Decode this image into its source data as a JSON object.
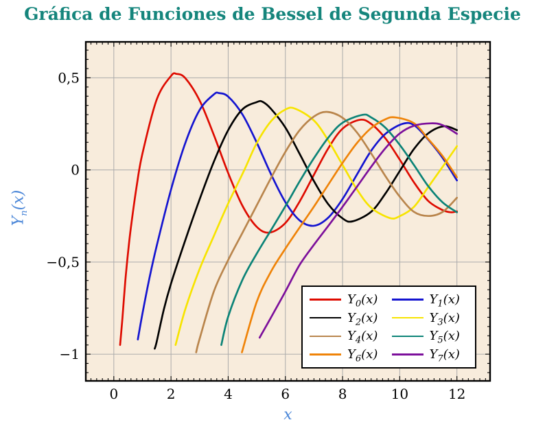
{
  "chart": {
    "title": "Gráfica de Funciones de Bessel de Segunda Especie",
    "title_color": "#15857C",
    "axis_label_color": "#4A86D8",
    "plot_bg": "#F8ECDC",
    "grid_color": "#ABABAB",
    "frame_color": "#000000",
    "tick_color": "#000000"
  },
  "axes": {
    "x": {
      "label": "x"
    },
    "y": {
      "label": {
        "base": "Y",
        "sub": "n",
        "args": "(x)"
      }
    }
  },
  "legend": {
    "base": "Y",
    "args": "(x)",
    "position": "bottom-right"
  },
  "chart_data": {
    "type": "line",
    "title": "Gráfica de Funciones de Bessel de Segunda Especie",
    "xlabel": "x",
    "ylabel": "Y_n(x)",
    "xlim": [
      -0.98,
      13.16
    ],
    "ylim": [
      -1.145,
      0.695
    ],
    "grid": true,
    "legend_position": "bottom-right",
    "x_ticks": {
      "values": [
        0,
        2,
        4,
        6,
        8,
        10,
        12
      ],
      "labels": [
        "0",
        "2",
        "4",
        "6",
        "8",
        "10",
        "12"
      ],
      "minor_step": 0.2
    },
    "y_ticks": {
      "values": [
        -1,
        -0.5,
        0,
        0.5
      ],
      "labels": [
        "−1",
        "−0,5",
        "0",
        "0,5"
      ],
      "minor_step": 0.05
    },
    "series": [
      {
        "name": "Y0(x)",
        "sub": "0",
        "color": "#DE0B00",
        "points": [
          [
            0.22,
            -0.95
          ],
          [
            0.3,
            -0.807
          ],
          [
            0.4,
            -0.606
          ],
          [
            0.5,
            -0.445
          ],
          [
            0.6,
            -0.309
          ],
          [
            0.8,
            -0.087
          ],
          [
            1,
            0.088
          ],
          [
            1.5,
            0.382
          ],
          [
            2,
            0.51
          ],
          [
            2.2,
            0.521
          ],
          [
            2.5,
            0.498
          ],
          [
            3,
            0.377
          ],
          [
            3.5,
            0.189
          ],
          [
            4,
            -0.017
          ],
          [
            4.5,
            -0.195
          ],
          [
            5,
            -0.309
          ],
          [
            5.45,
            -0.34
          ],
          [
            6,
            -0.288
          ],
          [
            6.5,
            -0.171
          ],
          [
            7,
            -0.026
          ],
          [
            7.5,
            0.117
          ],
          [
            8,
            0.224
          ],
          [
            8.6,
            0.272
          ],
          [
            9,
            0.25
          ],
          [
            9.5,
            0.171
          ],
          [
            10,
            0.056
          ],
          [
            10.5,
            -0.068
          ],
          [
            11,
            -0.169
          ],
          [
            11.5,
            -0.218
          ],
          [
            11.8,
            -0.23
          ],
          [
            12,
            -0.225
          ]
        ]
      },
      {
        "name": "Y1(x)",
        "sub": "1",
        "color": "#1414D0",
        "points": [
          [
            0.84,
            -0.92
          ],
          [
            1,
            -0.781
          ],
          [
            1.25,
            -0.584
          ],
          [
            1.5,
            -0.412
          ],
          [
            2,
            -0.107
          ],
          [
            2.5,
            0.146
          ],
          [
            3,
            0.325
          ],
          [
            3.5,
            0.41
          ],
          [
            3.68,
            0.417
          ],
          [
            4,
            0.398
          ],
          [
            4.5,
            0.301
          ],
          [
            5,
            0.148
          ],
          [
            5.5,
            -0.024
          ],
          [
            6,
            -0.175
          ],
          [
            6.5,
            -0.274
          ],
          [
            7,
            -0.303
          ],
          [
            7.5,
            -0.259
          ],
          [
            8,
            -0.158
          ],
          [
            8.5,
            -0.026
          ],
          [
            9,
            0.104
          ],
          [
            9.5,
            0.196
          ],
          [
            10.1,
            0.25
          ],
          [
            10.5,
            0.243
          ],
          [
            11,
            0.164
          ],
          [
            11.5,
            0.065
          ],
          [
            12,
            -0.057
          ]
        ]
      },
      {
        "name": "Y2(x)",
        "sub": "2",
        "color": "#000000",
        "points": [
          [
            1.43,
            -0.97
          ],
          [
            1.5,
            -0.932
          ],
          [
            1.75,
            -0.757
          ],
          [
            2,
            -0.617
          ],
          [
            2.5,
            -0.381
          ],
          [
            3,
            -0.16
          ],
          [
            3.5,
            0.045
          ],
          [
            4,
            0.216
          ],
          [
            4.5,
            0.329
          ],
          [
            5,
            0.368
          ],
          [
            5.2,
            0.37
          ],
          [
            5.5,
            0.331
          ],
          [
            6,
            0.23
          ],
          [
            6.5,
            0.087
          ],
          [
            7,
            -0.061
          ],
          [
            7.5,
            -0.186
          ],
          [
            8,
            -0.263
          ],
          [
            8.35,
            -0.279
          ],
          [
            9,
            -0.227
          ],
          [
            9.5,
            -0.128
          ],
          [
            10,
            -0.006
          ],
          [
            10.5,
            0.114
          ],
          [
            11,
            0.199
          ],
          [
            11.55,
            0.237
          ],
          [
            12,
            0.216
          ]
        ]
      },
      {
        "name": "Y3(x)",
        "sub": "3",
        "color": "#F7E400",
        "points": [
          [
            2.16,
            -0.95
          ],
          [
            2.5,
            -0.756
          ],
          [
            3,
            -0.538
          ],
          [
            3.5,
            -0.358
          ],
          [
            4,
            -0.182
          ],
          [
            4.55,
            -0.005
          ],
          [
            5,
            0.146
          ],
          [
            5.5,
            0.265
          ],
          [
            6,
            0.328
          ],
          [
            6.35,
            0.332
          ],
          [
            7,
            0.268
          ],
          [
            7.5,
            0.16
          ],
          [
            8,
            0.027
          ],
          [
            8.5,
            -0.105
          ],
          [
            9,
            -0.205
          ],
          [
            9.65,
            -0.261
          ],
          [
            10,
            -0.251
          ],
          [
            10.5,
            -0.2
          ],
          [
            11,
            -0.092
          ],
          [
            11.5,
            0.017
          ],
          [
            12,
            0.129
          ]
        ]
      },
      {
        "name": "Y4(x)",
        "sub": "4",
        "color": "#B9854C",
        "points": [
          [
            2.88,
            -0.99
          ],
          [
            3,
            -0.917
          ],
          [
            3.5,
            -0.659
          ],
          [
            4,
            -0.489
          ],
          [
            4.5,
            -0.341
          ],
          [
            5,
            -0.192
          ],
          [
            5.5,
            -0.043
          ],
          [
            6,
            0.098
          ],
          [
            6.5,
            0.216
          ],
          [
            7,
            0.29
          ],
          [
            7.45,
            0.315
          ],
          [
            8,
            0.283
          ],
          [
            8.5,
            0.204
          ],
          [
            9,
            0.09
          ],
          [
            9.5,
            -0.034
          ],
          [
            10,
            -0.145
          ],
          [
            10.5,
            -0.228
          ],
          [
            11,
            -0.25
          ],
          [
            11.5,
            -0.228
          ],
          [
            12,
            -0.151
          ]
        ]
      },
      {
        "name": "Y5(x)",
        "sub": "5",
        "color": "#0B8377",
        "points": [
          [
            3.76,
            -0.95
          ],
          [
            4,
            -0.796
          ],
          [
            4.5,
            -0.596
          ],
          [
            5,
            -0.454
          ],
          [
            5.5,
            -0.326
          ],
          [
            6,
            -0.197
          ],
          [
            6.5,
            -0.062
          ],
          [
            7,
            0.064
          ],
          [
            7.5,
            0.175
          ],
          [
            8,
            0.256
          ],
          [
            8.7,
            0.299
          ],
          [
            9,
            0.285
          ],
          [
            9.5,
            0.229
          ],
          [
            10,
            0.136
          ],
          [
            10.5,
            0.026
          ],
          [
            11,
            -0.089
          ],
          [
            11.5,
            -0.176
          ],
          [
            12,
            -0.23
          ]
        ]
      },
      {
        "name": "Y6(x)",
        "sub": "6",
        "color": "#EF8308",
        "points": [
          [
            4.48,
            -0.99
          ],
          [
            5,
            -0.715
          ],
          [
            5.5,
            -0.551
          ],
          [
            6,
            -0.427
          ],
          [
            6.5,
            -0.312
          ],
          [
            7,
            -0.199
          ],
          [
            7.5,
            -0.08
          ],
          [
            8,
            0.038
          ],
          [
            8.5,
            0.145
          ],
          [
            9,
            0.227
          ],
          [
            9.5,
            0.275
          ],
          [
            9.85,
            0.285
          ],
          [
            10.5,
            0.253
          ],
          [
            11,
            0.167
          ],
          [
            11.5,
            0.075
          ],
          [
            12,
            -0.04
          ]
        ]
      },
      {
        "name": "Y7(x)",
        "sub": "7",
        "color": "#7C0F9B",
        "points": [
          [
            5.1,
            -0.91
          ],
          [
            5.5,
            -0.8
          ],
          [
            6,
            -0.66
          ],
          [
            6.5,
            -0.515
          ],
          [
            7,
            -0.406
          ],
          [
            7.5,
            -0.304
          ],
          [
            8,
            -0.2
          ],
          [
            8.5,
            -0.092
          ],
          [
            9,
            0.017
          ],
          [
            9.5,
            0.118
          ],
          [
            10,
            0.198
          ],
          [
            10.5,
            0.24
          ],
          [
            11.1,
            0.253
          ],
          [
            11.5,
            0.243
          ],
          [
            12,
            0.196
          ]
        ]
      }
    ]
  }
}
